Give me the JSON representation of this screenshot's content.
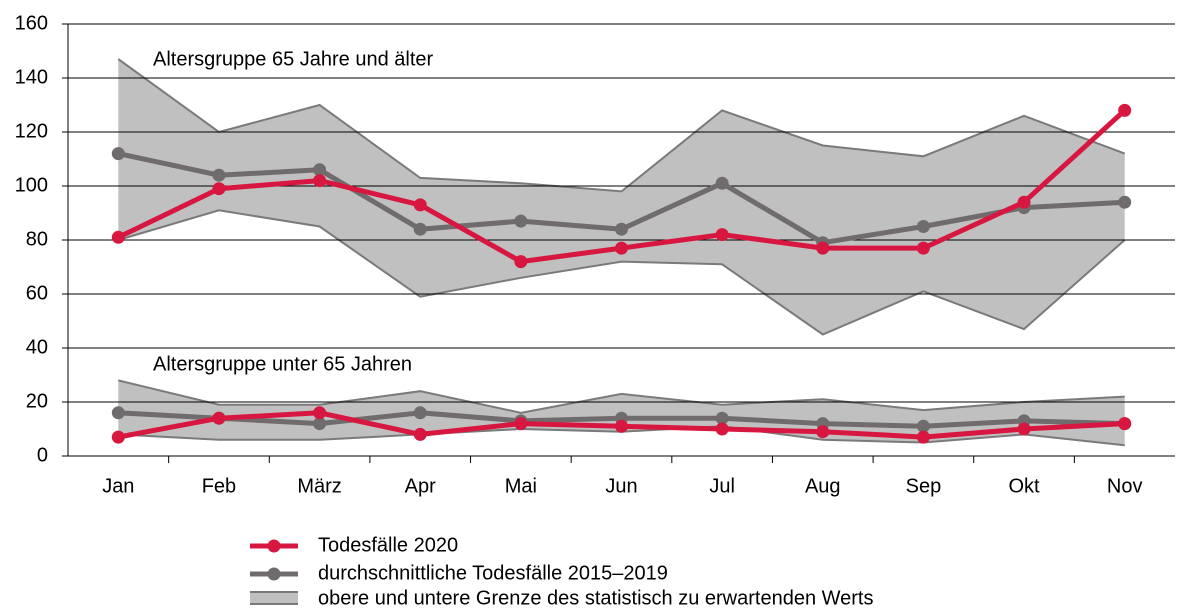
{
  "chart_data": {
    "type": "line",
    "categories": [
      "Jan",
      "Feb",
      "März",
      "Apr",
      "Mai",
      "Jun",
      "Jul",
      "Aug",
      "Sep",
      "Okt",
      "Nov"
    ],
    "ylim": [
      0,
      160
    ],
    "yticks": [
      0,
      20,
      40,
      60,
      80,
      100,
      120,
      140,
      160
    ],
    "grid": true,
    "groups": [
      "Altersgruppe 65 Jahre und älter",
      "Altersgruppe unter 65 Jahren"
    ],
    "series": [
      {
        "name": "Todesfälle 2020",
        "color": "#d7173f",
        "values": [
          [
            81,
            99,
            102,
            93,
            72,
            77,
            82,
            77,
            77,
            94,
            128
          ],
          [
            7,
            14,
            16,
            8,
            12,
            11,
            10,
            9,
            7,
            10,
            12
          ]
        ]
      },
      {
        "name": "durchschnittliche Todesfälle 2015–2019",
        "color": "#706c6d",
        "values": [
          [
            112,
            104,
            106,
            84,
            87,
            84,
            101,
            79,
            85,
            92,
            94
          ],
          [
            16,
            14,
            12,
            16,
            13,
            14,
            14,
            12,
            11,
            13,
            12
          ]
        ]
      },
      {
        "name": "obere und untere Grenze des statistisch zu erwartenden Werts",
        "color": "#c0c0c0",
        "upper": [
          [
            147,
            120,
            130,
            103,
            101,
            98,
            128,
            115,
            111,
            126,
            112
          ],
          [
            28,
            19,
            19,
            24,
            16,
            23,
            19,
            21,
            17,
            20,
            22
          ]
        ],
        "lower": [
          [
            80,
            91,
            85,
            59,
            66,
            72,
            71,
            45,
            61,
            47,
            80
          ],
          [
            8,
            6,
            6,
            8,
            10,
            9,
            11,
            6,
            5,
            8,
            4
          ]
        ]
      }
    ]
  }
}
